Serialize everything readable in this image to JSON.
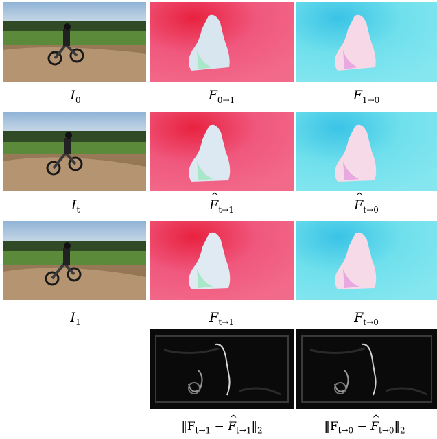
{
  "figure": {
    "rows": [
      {
        "label_main": "I",
        "label_sub": "0",
        "flow_a_main": "F",
        "flow_a_sub": "0→1",
        "flow_b_main": "F",
        "flow_b_sub": "1→0"
      },
      {
        "label_main": "I",
        "label_sub": "t",
        "flow_a_main": "F",
        "flow_a_sub": "t→1",
        "flow_b_main": "F",
        "flow_b_sub": "t→0"
      },
      {
        "label_main": "I",
        "label_sub": "1",
        "flow_a_main": "F",
        "flow_a_sub": "t→1",
        "flow_b_main": "F",
        "flow_b_sub": "t→0"
      }
    ],
    "error_captions": [
      {
        "pre": "‖F",
        "sub1": "t→1",
        "mid": " − ",
        "hatF": "F",
        "sub2": "t→1",
        "post": "‖",
        "norm": "2"
      },
      {
        "pre": "‖F",
        "sub1": "t→0",
        "mid": " − ",
        "hatF": "F",
        "sub2": "t→0",
        "post": "‖",
        "norm": "2"
      }
    ],
    "colors": {
      "flow_forward": "#f0587e",
      "flow_backward": "#6fe0ec",
      "error_map": "#0a0a0a"
    }
  }
}
